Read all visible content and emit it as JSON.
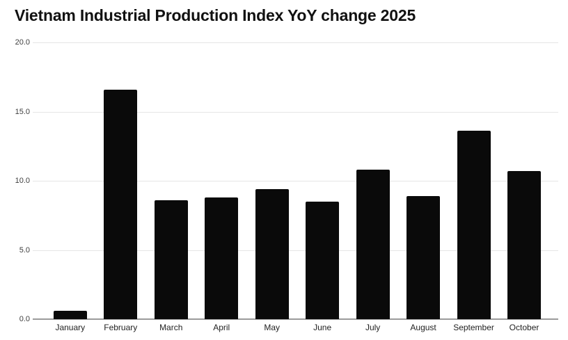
{
  "chart_data": {
    "type": "bar",
    "title": "Vietnam Industrial Production Index YoY change 2025",
    "categories": [
      "January",
      "February",
      "March",
      "April",
      "May",
      "June",
      "July",
      "August",
      "September",
      "October"
    ],
    "values": [
      0.6,
      16.6,
      8.6,
      8.8,
      9.4,
      8.5,
      10.8,
      8.9,
      13.6,
      10.7
    ],
    "xlabel": "",
    "ylabel": "",
    "ylim": [
      0,
      20
    ],
    "yticks": [
      0,
      5,
      10,
      15,
      20
    ],
    "ytick_labels": [
      "0.0",
      "5.0",
      "10.0",
      "15.0",
      "20.0"
    ],
    "grid": true,
    "legend_position": "none",
    "colors": {
      "bar": "#0a0a0a",
      "gridline": "#e5e5e5",
      "axis_line": "#9a9a9a",
      "title": "#111111",
      "ytick_label": "#3d3d3d",
      "xtick_label": "#1f1f1f",
      "background": "#ffffff"
    }
  }
}
